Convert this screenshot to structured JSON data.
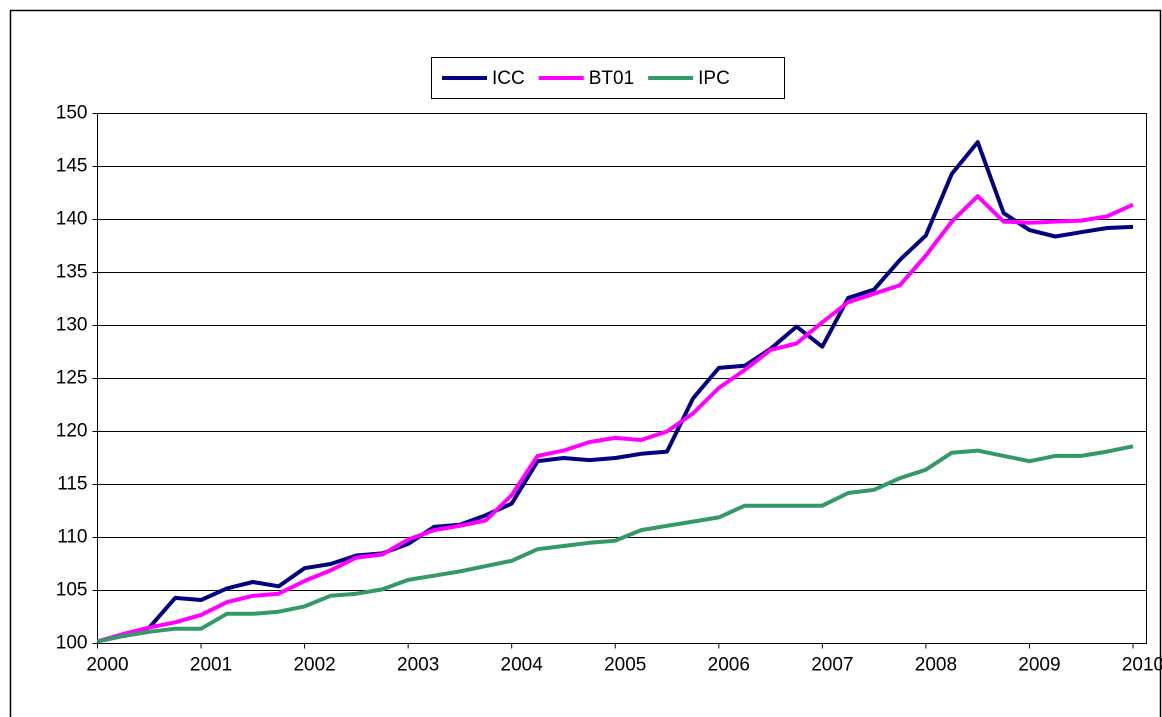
{
  "chart_data": {
    "type": "line",
    "x": [
      2000,
      2000.25,
      2000.5,
      2000.75,
      2001,
      2001.25,
      2001.5,
      2001.75,
      2002,
      2002.25,
      2002.5,
      2002.75,
      2003,
      2003.25,
      2003.5,
      2003.75,
      2004,
      2004.25,
      2004.5,
      2004.75,
      2005,
      2005.25,
      2005.5,
      2005.75,
      2006,
      2006.25,
      2006.5,
      2006.75,
      2007,
      2007.25,
      2007.5,
      2007.75,
      2008,
      2008.25,
      2008.5,
      2008.75,
      2009,
      2009.25,
      2009.5,
      2009.75,
      2010
    ],
    "series": [
      {
        "name": "ICC",
        "color": "#000080",
        "values": [
          100.2,
          100.8,
          101.5,
          104.3,
          104.1,
          105.2,
          105.8,
          105.4,
          107.1,
          107.5,
          108.3,
          108.5,
          109.4,
          111.0,
          111.2,
          112.1,
          113.2,
          117.2,
          117.5,
          117.3,
          117.5,
          117.9,
          118.1,
          123.1,
          126.0,
          126.2,
          127.8,
          129.9,
          128.0,
          132.6,
          133.4,
          136.2,
          138.5,
          144.3,
          147.3,
          140.6,
          139.0,
          138.4,
          138.8,
          139.2,
          139.3
        ]
      },
      {
        "name": "BT01",
        "color": "#ff00ff",
        "values": [
          100.2,
          100.9,
          101.5,
          102.0,
          102.7,
          103.9,
          104.5,
          104.7,
          105.9,
          106.9,
          108.1,
          108.4,
          109.8,
          110.7,
          111.1,
          111.6,
          114.0,
          117.7,
          118.2,
          119.0,
          119.4,
          119.2,
          120.0,
          121.7,
          124.1,
          125.8,
          127.7,
          128.3,
          130.3,
          132.2,
          133.0,
          133.8,
          136.6,
          139.8,
          142.2,
          139.8,
          139.7,
          139.8,
          139.9,
          140.3,
          141.4
        ]
      },
      {
        "name": "IPC",
        "color": "#339966",
        "values": [
          100.2,
          100.7,
          101.1,
          101.4,
          101.4,
          102.8,
          102.8,
          103.0,
          103.5,
          104.5,
          104.7,
          105.1,
          106.0,
          106.4,
          106.8,
          107.3,
          107.8,
          108.9,
          109.2,
          109.5,
          109.7,
          110.7,
          111.1,
          111.5,
          111.9,
          113.0,
          113.0,
          113.0,
          113.0,
          114.2,
          114.5,
          115.6,
          116.4,
          118.0,
          118.2,
          117.7,
          117.2,
          117.7,
          117.7,
          118.1,
          118.6
        ]
      }
    ],
    "xlim": [
      2000,
      2010
    ],
    "xticks": [
      2000,
      2001,
      2002,
      2003,
      2004,
      2005,
      2006,
      2007,
      2008,
      2009,
      2010
    ],
    "ylim": [
      100,
      150
    ],
    "yticks": [
      100,
      105,
      110,
      115,
      120,
      125,
      130,
      135,
      140,
      145,
      150
    ],
    "grid": true,
    "legend": "top"
  }
}
